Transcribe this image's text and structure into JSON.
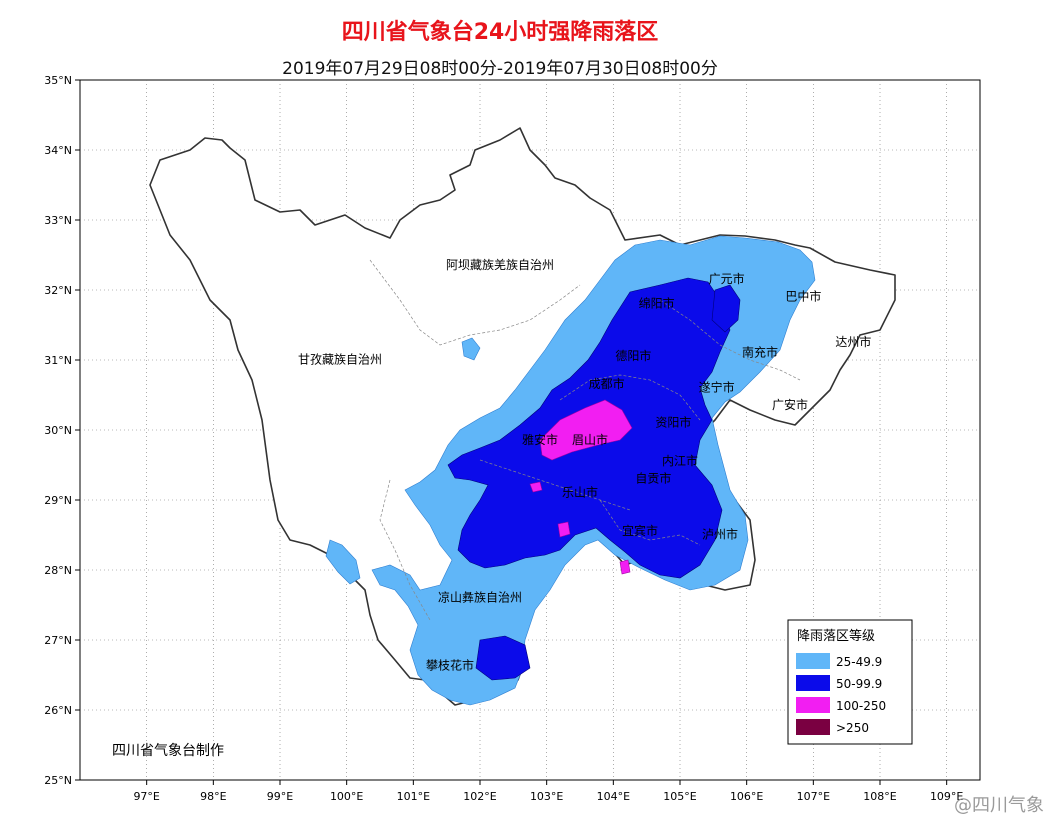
{
  "header": {
    "title": "四川省气象台24小时强降雨落区",
    "period": "2019年07月29日08时00分-2019年07月30日08时00分"
  },
  "map": {
    "lat_ticks": [
      "35°N",
      "34°N",
      "33°N",
      "32°N",
      "31°N",
      "30°N",
      "29°N",
      "28°N",
      "27°N",
      "26°N",
      "25°N"
    ],
    "lon_ticks": [
      "97°E",
      "98°E",
      "99°E",
      "100°E",
      "101°E",
      "102°E",
      "103°E",
      "104°E",
      "105°E",
      "106°E",
      "107°E",
      "108°E",
      "109°E"
    ],
    "regions": [
      {
        "name": "阿坝藏族羌族自治州",
        "lon": 102.3,
        "lat": 32.3
      },
      {
        "name": "甘孜藏族自治州",
        "lon": 99.9,
        "lat": 30.95
      },
      {
        "name": "凉山彝族自治州",
        "lon": 102.0,
        "lat": 27.55
      },
      {
        "name": "攀枝花市",
        "lon": 101.55,
        "lat": 26.58
      },
      {
        "name": "雅安市",
        "lon": 102.9,
        "lat": 29.8
      },
      {
        "name": "眉山市",
        "lon": 103.65,
        "lat": 29.8
      },
      {
        "name": "乐山市",
        "lon": 103.5,
        "lat": 29.05
      },
      {
        "name": "成都市",
        "lon": 103.9,
        "lat": 30.6
      },
      {
        "name": "德阳市",
        "lon": 104.3,
        "lat": 31.0
      },
      {
        "name": "绵阳市",
        "lon": 104.65,
        "lat": 31.75
      },
      {
        "name": "广元市",
        "lon": 105.7,
        "lat": 32.1
      },
      {
        "name": "巴中市",
        "lon": 106.85,
        "lat": 31.85
      },
      {
        "name": "达州市",
        "lon": 107.6,
        "lat": 31.2
      },
      {
        "name": "南充市",
        "lon": 106.2,
        "lat": 31.05
      },
      {
        "name": "遂宁市",
        "lon": 105.55,
        "lat": 30.55
      },
      {
        "name": "广安市",
        "lon": 106.65,
        "lat": 30.3
      },
      {
        "name": "资阳市",
        "lon": 104.9,
        "lat": 30.05
      },
      {
        "name": "内江市",
        "lon": 105.0,
        "lat": 29.5
      },
      {
        "name": "自贡市",
        "lon": 104.6,
        "lat": 29.25
      },
      {
        "name": "宜宾市",
        "lon": 104.4,
        "lat": 28.5
      },
      {
        "name": "泸州市",
        "lon": 105.6,
        "lat": 28.45
      }
    ]
  },
  "legend": {
    "title": "降雨落区等级",
    "items": [
      {
        "label": "25-49.9",
        "color": "#60b6f8"
      },
      {
        "label": "50-99.9",
        "color": "#0b0bea"
      },
      {
        "label": "100-250",
        "color": "#f21ef2"
      },
      {
        "label": ">250",
        "color": "#7a0041"
      }
    ]
  },
  "credit": "四川省气象台制作",
  "watermark": "@四川气象"
}
